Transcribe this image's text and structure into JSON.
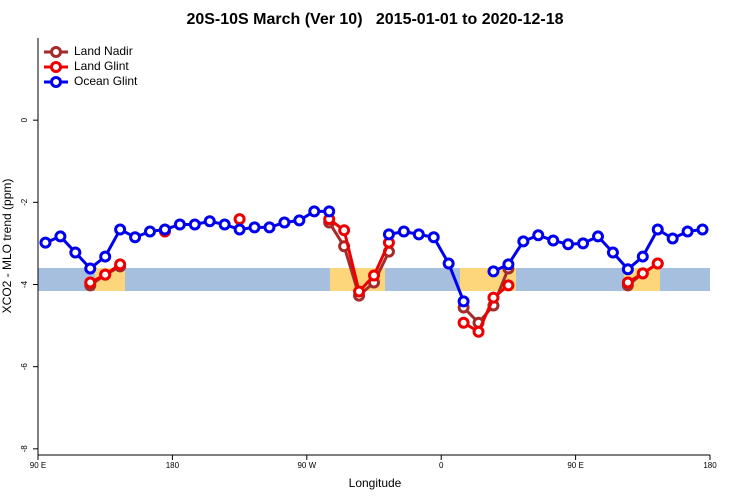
{
  "chart_data": {
    "type": "line",
    "title": "20S-10S March (Ver 10)   2015-01-01 to 2020-12-18",
    "x_label": "Longitude",
    "y_label": "XCO2 - MLO trend (ppm)",
    "x": [
      95,
      105,
      115,
      125,
      135,
      145,
      155,
      165,
      175,
      185,
      195,
      205,
      215,
      225,
      235,
      245,
      255,
      265,
      275,
      285,
      295,
      305,
      315,
      325,
      335,
      345,
      355,
      365,
      375,
      385,
      395,
      405,
      415,
      425,
      435,
      445,
      455,
      465,
      475,
      485,
      495,
      505,
      515,
      525,
      535
    ],
    "series": [
      {
        "name": "Land Nadir",
        "color": "#a52a2a",
        "values": [
          null,
          null,
          null,
          -4.02,
          -3.76,
          -3.56,
          null,
          null,
          null,
          null,
          null,
          null,
          null,
          null,
          null,
          null,
          null,
          null,
          null,
          -2.49,
          -3.07,
          -4.27,
          -3.95,
          -3.2,
          null,
          null,
          null,
          null,
          -4.56,
          -4.93,
          -4.51,
          -3.61,
          null,
          null,
          null,
          null,
          null,
          null,
          null,
          -4.02,
          -3.73,
          -3.49,
          null,
          null,
          null
        ]
      },
      {
        "name": "Land Glint",
        "color": "#ee0000",
        "values": [
          null,
          null,
          null,
          -3.95,
          -3.76,
          -3.51,
          null,
          null,
          -2.71,
          null,
          null,
          null,
          null,
          -2.41,
          null,
          null,
          null,
          null,
          null,
          -2.41,
          -2.68,
          -4.17,
          -3.78,
          -2.98,
          null,
          null,
          null,
          null,
          -4.93,
          -5.15,
          -4.32,
          -4.02,
          null,
          null,
          null,
          null,
          null,
          null,
          null,
          -3.95,
          -3.73,
          -3.49,
          null,
          null,
          null
        ]
      },
      {
        "name": "Ocean Glint",
        "color": "#0000ee",
        "values": [
          -2.98,
          -2.83,
          -3.22,
          -3.61,
          -3.32,
          -2.66,
          -2.85,
          -2.71,
          -2.66,
          -2.54,
          -2.54,
          -2.46,
          -2.54,
          -2.66,
          -2.61,
          -2.61,
          -2.49,
          -2.44,
          -2.22,
          -2.22,
          null,
          null,
          null,
          -2.78,
          -2.71,
          -2.78,
          -2.85,
          -3.49,
          -4.41,
          null,
          -3.68,
          -3.51,
          -2.95,
          -2.8,
          -2.93,
          -3.02,
          -3.0,
          -2.83,
          -3.22,
          -3.63,
          -3.32,
          -2.66,
          -2.88,
          -2.71,
          -2.66
        ]
      }
    ],
    "xlim": [
      90,
      540
    ],
    "xticks": [
      {
        "value": 90,
        "label": "90 E"
      },
      {
        "value": 180,
        "label": "180"
      },
      {
        "value": 270,
        "label": "90 W"
      },
      {
        "value": 360,
        "label": "0"
      },
      {
        "value": 450,
        "label": "90 E"
      },
      {
        "value": 540,
        "label": "180"
      }
    ],
    "ylim": [
      -8.15,
      2
    ],
    "yticks": [
      0,
      -2,
      -4,
      -6,
      -8
    ],
    "legend": "top-left"
  }
}
